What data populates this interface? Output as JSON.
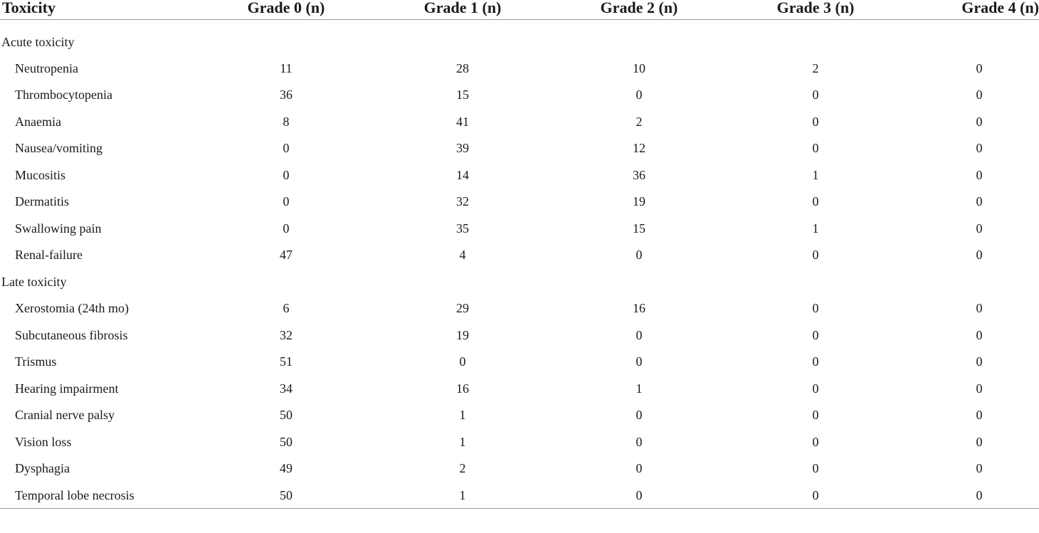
{
  "table": {
    "headers": [
      "Toxicity",
      "Grade 0 (n)",
      "Grade 1 (n)",
      "Grade 2 (n)",
      "Grade 3 (n)",
      "Grade 4 (n)"
    ],
    "sections": [
      {
        "label": "Acute toxicity",
        "rows": [
          {
            "label": "Neutropenia",
            "values": [
              "11",
              "28",
              "10",
              "2",
              "0"
            ]
          },
          {
            "label": "Thrombocytopenia",
            "values": [
              "36",
              "15",
              "0",
              "0",
              "0"
            ]
          },
          {
            "label": "Anaemia",
            "values": [
              "8",
              "41",
              "2",
              "0",
              "0"
            ]
          },
          {
            "label": "Nausea/vomiting",
            "values": [
              "0",
              "39",
              "12",
              "0",
              "0"
            ]
          },
          {
            "label": "Mucositis",
            "values": [
              "0",
              "14",
              "36",
              "1",
              "0"
            ]
          },
          {
            "label": "Dermatitis",
            "values": [
              "0",
              "32",
              "19",
              "0",
              "0"
            ]
          },
          {
            "label": "Swallowing pain",
            "values": [
              "0",
              "35",
              "15",
              "1",
              "0"
            ]
          },
          {
            "label": "Renal-failure",
            "values": [
              "47",
              "4",
              "0",
              "0",
              "0"
            ]
          }
        ]
      },
      {
        "label": "Late toxicity",
        "rows": [
          {
            "label": "Xerostomia (24th mo)",
            "values": [
              "6",
              "29",
              "16",
              "0",
              "0"
            ]
          },
          {
            "label": "Subcutaneous fibrosis",
            "values": [
              "32",
              "19",
              "0",
              "0",
              "0"
            ]
          },
          {
            "label": "Trismus",
            "values": [
              "51",
              "0",
              "0",
              "0",
              "0"
            ]
          },
          {
            "label": "Hearing impairment",
            "values": [
              "34",
              "16",
              "1",
              "0",
              "0"
            ]
          },
          {
            "label": "Cranial nerve palsy",
            "values": [
              "50",
              "1",
              "0",
              "0",
              "0"
            ]
          },
          {
            "label": "Vision loss",
            "values": [
              "50",
              "1",
              "0",
              "0",
              "0"
            ]
          },
          {
            "label": "Dysphagia",
            "values": [
              "49",
              "2",
              "0",
              "0",
              "0"
            ]
          },
          {
            "label": "Temporal lobe necrosis",
            "values": [
              "50",
              "1",
              "0",
              "0",
              "0"
            ]
          }
        ]
      }
    ]
  }
}
